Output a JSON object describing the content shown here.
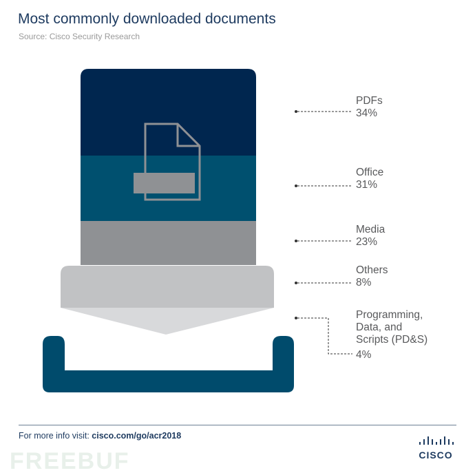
{
  "title": "Most commonly downloaded documents",
  "source": "Source: Cisco Security Research",
  "footer": {
    "prefix": "For more info visit: ",
    "link": "cisco.com/go/acr2018"
  },
  "logo": {
    "text": "CISCO"
  },
  "watermark": "FREEBUF",
  "colors": {
    "pdfs": "#00264f",
    "office": "#00506f",
    "media": "#8f9194",
    "others": "#c1c2c4",
    "pds": "#004b6c"
  },
  "chart_data": {
    "type": "bar",
    "stacked": true,
    "categories": [
      "PDFs",
      "Office",
      "Media",
      "Others",
      "Programming, Data, and Scripts (PD&S)"
    ],
    "values": [
      34,
      31,
      23,
      8,
      4
    ],
    "unit": "%",
    "labels": [
      {
        "name": [
          "PDFs"
        ],
        "value": "34%"
      },
      {
        "name": [
          "Office"
        ],
        "value": "31%"
      },
      {
        "name": [
          "Media"
        ],
        "value": "23%"
      },
      {
        "name": [
          "Others"
        ],
        "value": "8%"
      },
      {
        "name": [
          "Programming,",
          "Data, and",
          "Scripts (PD&S)"
        ],
        "value": "4%"
      }
    ]
  }
}
